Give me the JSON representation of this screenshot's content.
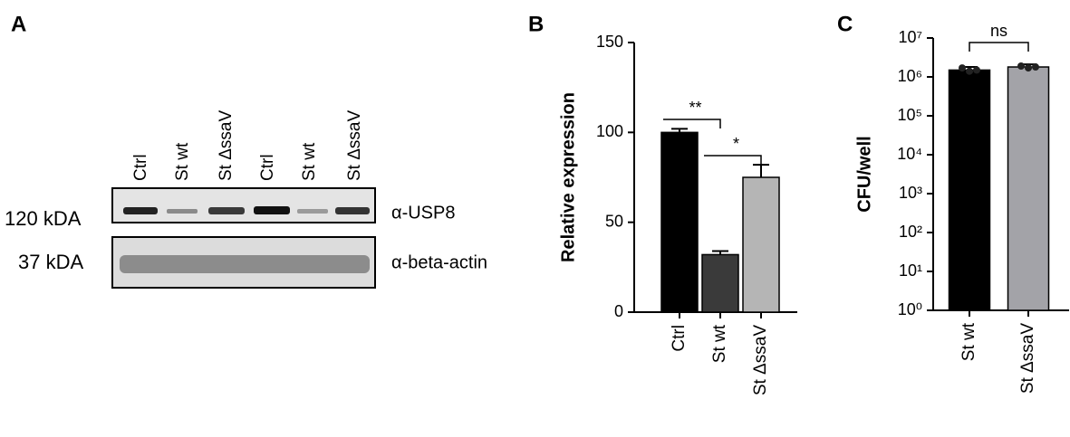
{
  "blot": {
    "panel_label": "A",
    "lanes": [
      "Ctrl",
      "St wt",
      "St ΔssaV",
      "Ctrl",
      "St wt",
      "St ΔssaV"
    ],
    "rows": [
      {
        "size": "120 kDA",
        "antibody": "α-USP8"
      },
      {
        "size": "37 kDA",
        "antibody": "α-beta-actin"
      }
    ]
  },
  "chart_data": [
    {
      "type": "bar",
      "panel_label": "B",
      "ylabel": "Relative expression",
      "categories": [
        "Ctrl",
        "St wt",
        "St ΔssaV"
      ],
      "values": [
        100,
        32,
        75
      ],
      "errors": [
        2,
        2,
        7
      ],
      "colors": [
        "#000000",
        "#3a3a3a",
        "#b5b5b5"
      ],
      "ylim": [
        0,
        150
      ],
      "yticks": [
        0,
        50,
        100,
        150
      ],
      "log": false,
      "significance": [
        {
          "label": "**",
          "pair": [
            0,
            1
          ]
        },
        {
          "label": "*",
          "pair": [
            1,
            2
          ]
        }
      ]
    },
    {
      "type": "bar",
      "panel_label": "C",
      "ylabel": "CFU/well",
      "categories": [
        "St wt",
        "St ΔssaV"
      ],
      "values": [
        1500000,
        1800000
      ],
      "errors": [
        300000,
        300000
      ],
      "points": [
        [
          1700000,
          1400000,
          1500000
        ],
        [
          1900000,
          1700000,
          1800000
        ]
      ],
      "colors": [
        "#000000",
        "#a3a3a8"
      ],
      "ylim": [
        1,
        10000000
      ],
      "log": true,
      "yticks": [
        {
          "value": 1,
          "label": "10⁰"
        },
        {
          "value": 10,
          "label": "10¹"
        },
        {
          "value": 100,
          "label": "10²"
        },
        {
          "value": 1000,
          "label": "10³"
        },
        {
          "value": 10000,
          "label": "10⁴"
        },
        {
          "value": 100000,
          "label": "10⁵"
        },
        {
          "value": 1000000,
          "label": "10⁶"
        },
        {
          "value": 10000000,
          "label": "10⁷"
        }
      ],
      "significance": [
        {
          "label": "ns",
          "pair": [
            0,
            1
          ]
        }
      ]
    }
  ]
}
